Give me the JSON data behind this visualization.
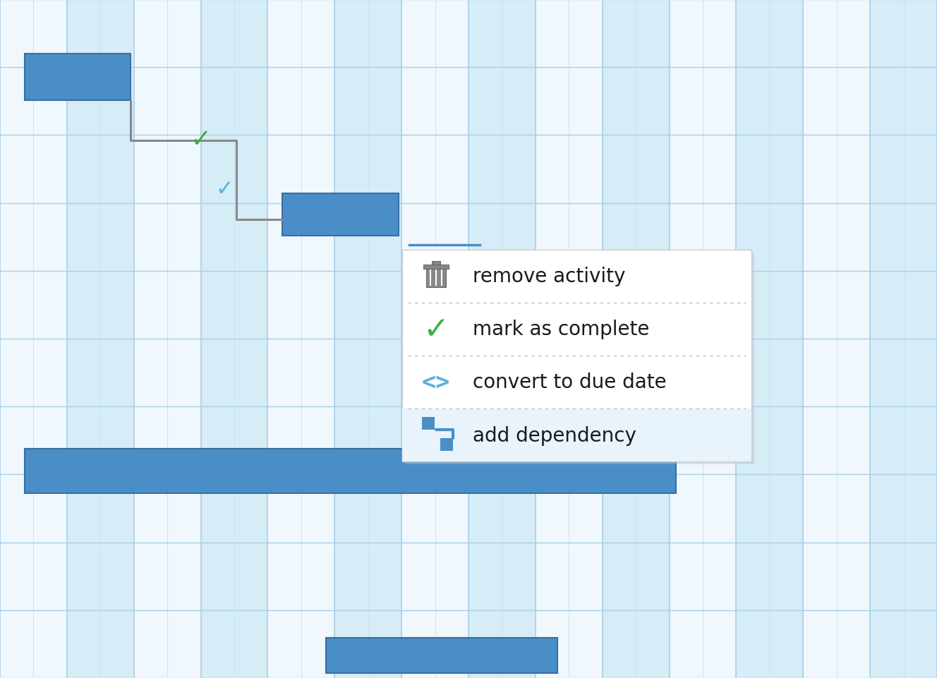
{
  "bar_color": "#4a8ec8",
  "bar_border": "#3a6e9e",
  "connector_color": "#888888",
  "green_check_color": "#3cb043",
  "blue_check_color": "#5aaee0",
  "menu_bg": "#ffffff",
  "menu_highlight": "#e8f3fc",
  "menu_text": "#1a1a1a",
  "menu_border": "#cccccc",
  "dotted_line_color": "#bbbbbb",
  "col_bg_white": "#f0f8fd",
  "col_bg_blue": "#d6ecf7",
  "grid_line_minor": "#c8e4f2",
  "grid_line_major": "#a8cfe6",
  "menu_items": [
    "remove activity",
    "mark as complete",
    "convert to due date",
    "add dependency"
  ],
  "menu_fontsize": 20
}
